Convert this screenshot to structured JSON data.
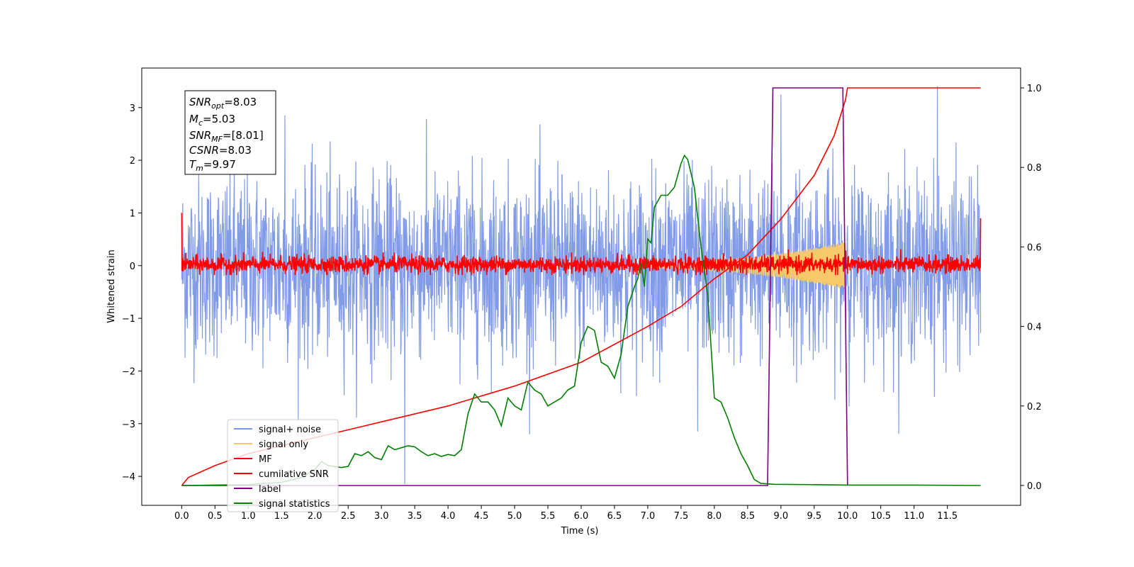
{
  "chart_data": {
    "type": "line",
    "xlabel": "Time (s)",
    "ylabel": "Whitened strain",
    "xlim": [
      -0.6,
      12.6
    ],
    "ylim": [
      -4.55,
      3.75
    ],
    "y2lim": [
      -0.05,
      1.05
    ],
    "x_ticks": [
      0.0,
      0.5,
      1.0,
      1.5,
      2.0,
      2.5,
      3.0,
      3.5,
      4.0,
      4.5,
      5.0,
      5.5,
      6.0,
      6.5,
      7.0,
      7.5,
      8.0,
      8.5,
      9.0,
      9.5,
      10.0,
      10.5,
      11.0,
      11.5
    ],
    "x_tick_labels": [
      "0.0",
      "0.5",
      "1.0",
      "1.5",
      "2.0",
      "2.5",
      "3.0",
      "3.5",
      "4.0",
      "4.5",
      "5.0",
      "5.5",
      "6.0",
      "6.5",
      "7.0",
      "7.5",
      "8.0",
      "8.5",
      "9.0",
      "9.5",
      "10.0",
      "10.5",
      "11.0",
      "11.5"
    ],
    "y_ticks": [
      -4,
      -3,
      -2,
      -1,
      0,
      1,
      2,
      3
    ],
    "y_tick_labels": [
      "−4",
      "−3",
      "−2",
      "−1",
      "0",
      "1",
      "2",
      "3"
    ],
    "y2_ticks": [
      0.0,
      0.2,
      0.4,
      0.6,
      0.8,
      1.0
    ],
    "y2_tick_labels": [
      "0.0",
      "0.2",
      "0.4",
      "0.6",
      "0.8",
      "1.0"
    ],
    "grid": false,
    "legend_position": "lower-left",
    "legend": [
      {
        "label": "signal+ noise",
        "color": "#7b96e8"
      },
      {
        "label": "signal only",
        "color": "#f7c96b"
      },
      {
        "label": "MF",
        "color": "#ff0000"
      },
      {
        "label": "cumilative SNR",
        "color": "#ff0000"
      },
      {
        "label": "label",
        "color": "#800080"
      },
      {
        "label": "signal statistics",
        "color": "#008000"
      }
    ],
    "info_box": {
      "snr_opt": {
        "name": "SNR",
        "sub": "opt",
        "value": "=8.03"
      },
      "mc": {
        "name": "M",
        "sub": "c",
        "value": "=5.03"
      },
      "snr_mf": {
        "name": "SNR",
        "sub": "MF",
        "value": "=[8.01]"
      },
      "csnr": {
        "name": "CSNR",
        "sub": "",
        "value": "=8.03"
      },
      "tm": {
        "name": "T",
        "sub": "m",
        "value": "=9.97"
      }
    },
    "series": [
      {
        "name": "signal+ noise",
        "axis": "left",
        "color": "#7b96e8",
        "kind": "noise",
        "x_range": [
          0.0,
          12.0
        ],
        "sigma": 1.0,
        "clip": [
          -3.2,
          3.3
        ],
        "spikes": [
          {
            "x": 3.35,
            "y": -4.15
          },
          {
            "x": 7.75,
            "y": -3.15
          },
          {
            "x": 11.35,
            "y": 3.4
          },
          {
            "x": 9.0,
            "y": 3.25
          },
          {
            "x": 1.55,
            "y": 2.85
          }
        ]
      },
      {
        "name": "signal only",
        "axis": "left",
        "color": "#f7c96b",
        "kind": "chirp",
        "x_range": [
          7.0,
          9.97
        ],
        "amp_start": 0.05,
        "amp_end": 0.45
      },
      {
        "name": "MF",
        "axis": "left",
        "color": "#ff0000",
        "kind": "noise",
        "x_range": [
          0.0,
          12.0
        ],
        "sigma": 0.09,
        "clip": [
          -0.18,
          0.42
        ],
        "spikes": [
          {
            "x": 0.0,
            "y": 1.0
          },
          {
            "x": 12.0,
            "y": 0.9
          }
        ]
      },
      {
        "name": "cumilative SNR",
        "axis": "right",
        "color": "#ff0000",
        "kind": "line",
        "x": [
          0.0,
          0.1,
          0.5,
          1.0,
          1.5,
          2.0,
          3.0,
          4.0,
          5.0,
          6.0,
          7.0,
          7.5,
          8.0,
          8.5,
          9.0,
          9.5,
          9.8,
          9.97,
          10.0,
          12.0
        ],
        "y": [
          0.0,
          0.02,
          0.05,
          0.08,
          0.1,
          0.12,
          0.16,
          0.2,
          0.25,
          0.31,
          0.4,
          0.45,
          0.52,
          0.58,
          0.67,
          0.78,
          0.88,
          0.97,
          1.0,
          1.0
        ]
      },
      {
        "name": "label",
        "axis": "right",
        "color": "#800080",
        "kind": "line",
        "x": [
          0.0,
          8.8,
          8.88,
          9.93,
          10.0
        ],
        "y": [
          0.0,
          0.0,
          1.0,
          1.0,
          0.0
        ]
      },
      {
        "name": "signal statistics",
        "axis": "right",
        "color": "#008000",
        "kind": "line",
        "x": [
          0.0,
          0.5,
          1.0,
          1.5,
          1.8,
          2.0,
          2.1,
          2.2,
          2.4,
          2.5,
          2.6,
          2.7,
          2.8,
          2.9,
          3.0,
          3.1,
          3.2,
          3.3,
          3.4,
          3.5,
          3.6,
          3.7,
          3.8,
          3.9,
          4.0,
          4.1,
          4.2,
          4.3,
          4.4,
          4.5,
          4.6,
          4.7,
          4.8,
          4.9,
          5.0,
          5.1,
          5.2,
          5.3,
          5.4,
          5.5,
          5.6,
          5.7,
          5.8,
          5.9,
          6.0,
          6.1,
          6.2,
          6.3,
          6.4,
          6.5,
          6.6,
          6.7,
          6.8,
          6.85,
          6.9,
          6.95,
          7.0,
          7.05,
          7.1,
          7.2,
          7.3,
          7.4,
          7.5,
          7.55,
          7.6,
          7.7,
          7.8,
          7.9,
          8.0,
          8.1,
          8.2,
          8.3,
          8.4,
          8.5,
          8.6,
          8.7,
          8.9,
          9.5,
          10.0,
          11.0,
          12.0
        ],
        "y": [
          0.0,
          0.001,
          0.002,
          0.008,
          0.02,
          0.04,
          0.06,
          0.05,
          0.045,
          0.048,
          0.08,
          0.075,
          0.085,
          0.07,
          0.065,
          0.1,
          0.09,
          0.095,
          0.1,
          0.097,
          0.085,
          0.075,
          0.08,
          0.073,
          0.078,
          0.075,
          0.09,
          0.18,
          0.23,
          0.21,
          0.21,
          0.19,
          0.15,
          0.22,
          0.2,
          0.19,
          0.26,
          0.24,
          0.23,
          0.2,
          0.21,
          0.22,
          0.24,
          0.25,
          0.36,
          0.4,
          0.39,
          0.31,
          0.3,
          0.27,
          0.33,
          0.45,
          0.5,
          0.52,
          0.56,
          0.5,
          0.62,
          0.61,
          0.7,
          0.73,
          0.73,
          0.75,
          0.81,
          0.83,
          0.82,
          0.75,
          0.6,
          0.48,
          0.22,
          0.21,
          0.17,
          0.12,
          0.08,
          0.05,
          0.015,
          0.005,
          0.003,
          0.002,
          0.001,
          0.001,
          0.0
        ]
      }
    ]
  }
}
